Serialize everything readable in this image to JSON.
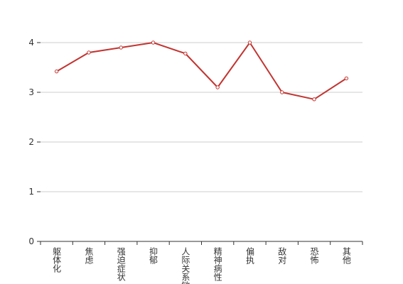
{
  "chart_data": {
    "type": "line",
    "categories": [
      "躯体化",
      "焦虑",
      "强迫症状",
      "抑郁",
      "人际关系敏感",
      "精神病性",
      "偏执",
      "敌对",
      "恐怖",
      "其他"
    ],
    "values": [
      3.42,
      3.8,
      3.9,
      4.0,
      3.78,
      3.1,
      4.0,
      3.0,
      2.86,
      3.28
    ],
    "color": "#c23531",
    "ylim": [
      0,
      4
    ],
    "yticks": [
      0,
      1,
      2,
      3,
      4
    ],
    "grid": true
  }
}
